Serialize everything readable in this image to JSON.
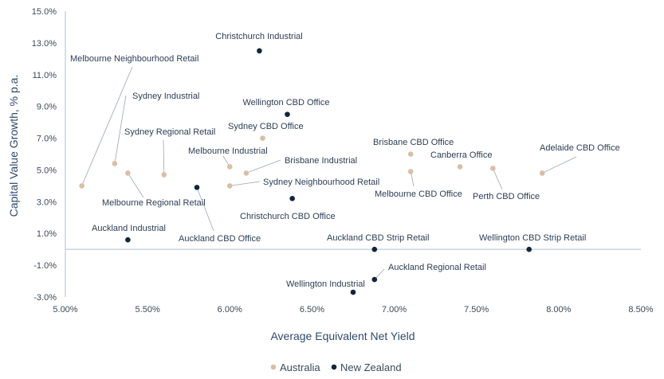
{
  "chart_data": {
    "type": "scatter",
    "xlabel": "Average Equivalent Net Yield",
    "ylabel": "Capital Value Growth, % p.a.",
    "xlim": [
      5.0,
      8.5
    ],
    "ylim": [
      -3.0,
      15.0
    ],
    "x_ticks": [
      "5.00%",
      "5.50%",
      "6.00%",
      "6.50%",
      "7.00%",
      "7.50%",
      "8.00%",
      "8.50%"
    ],
    "y_ticks": [
      "-3.0%",
      "-1.0%",
      "1.0%",
      "3.0%",
      "5.0%",
      "7.0%",
      "9.0%",
      "11.0%",
      "13.0%",
      "15.0%"
    ],
    "grid": false,
    "legend_position": "bottom",
    "series": [
      {
        "name": "Australia",
        "color": "#d9bfa6",
        "points": [
          {
            "label": "Melbourne Neighbourhood Retail",
            "x": 5.1,
            "y": 4.0
          },
          {
            "label": "Sydney Industrial",
            "x": 5.3,
            "y": 5.4
          },
          {
            "label": "Melbourne Regional Retail",
            "x": 5.38,
            "y": 4.8
          },
          {
            "label": "Sydney Regional Retail",
            "x": 5.6,
            "y": 4.7
          },
          {
            "label": "Melbourne Industrial",
            "x": 6.0,
            "y": 5.2
          },
          {
            "label": "Sydney Neighbourhood Retail",
            "x": 6.0,
            "y": 4.0
          },
          {
            "label": "Brisbane Industrial",
            "x": 6.1,
            "y": 4.8
          },
          {
            "label": "Sydney CBD Office",
            "x": 6.2,
            "y": 7.0
          },
          {
            "label": "Brisbane CBD Office",
            "x": 7.1,
            "y": 6.0
          },
          {
            "label": "Melbourne CBD Office",
            "x": 7.1,
            "y": 4.9
          },
          {
            "label": "Canberra Office",
            "x": 7.4,
            "y": 5.2
          },
          {
            "label": "Perth CBD Office",
            "x": 7.6,
            "y": 5.1
          },
          {
            "label": "Adelaide CBD Office",
            "x": 7.9,
            "y": 4.8
          }
        ]
      },
      {
        "name": "New Zealand",
        "color": "#12263a",
        "points": [
          {
            "label": "Christchurch Industrial",
            "x": 6.18,
            "y": 12.5
          },
          {
            "label": "Wellington CBD Office",
            "x": 6.35,
            "y": 8.5
          },
          {
            "label": "Auckland CBD Office",
            "x": 5.8,
            "y": 3.9
          },
          {
            "label": "Christchurch CBD Office",
            "x": 6.38,
            "y": 3.2
          },
          {
            "label": "Auckland Industrial",
            "x": 5.38,
            "y": 0.6
          },
          {
            "label": "Auckland CBD Strip Retail",
            "x": 6.88,
            "y": 0.0
          },
          {
            "label": "Wellington CBD Strip Retail",
            "x": 7.82,
            "y": 0.0
          },
          {
            "label": "Auckland Regional Retail",
            "x": 6.88,
            "y": -1.9
          },
          {
            "label": "Wellington Industrial",
            "x": 6.75,
            "y": -2.7
          }
        ]
      }
    ]
  }
}
